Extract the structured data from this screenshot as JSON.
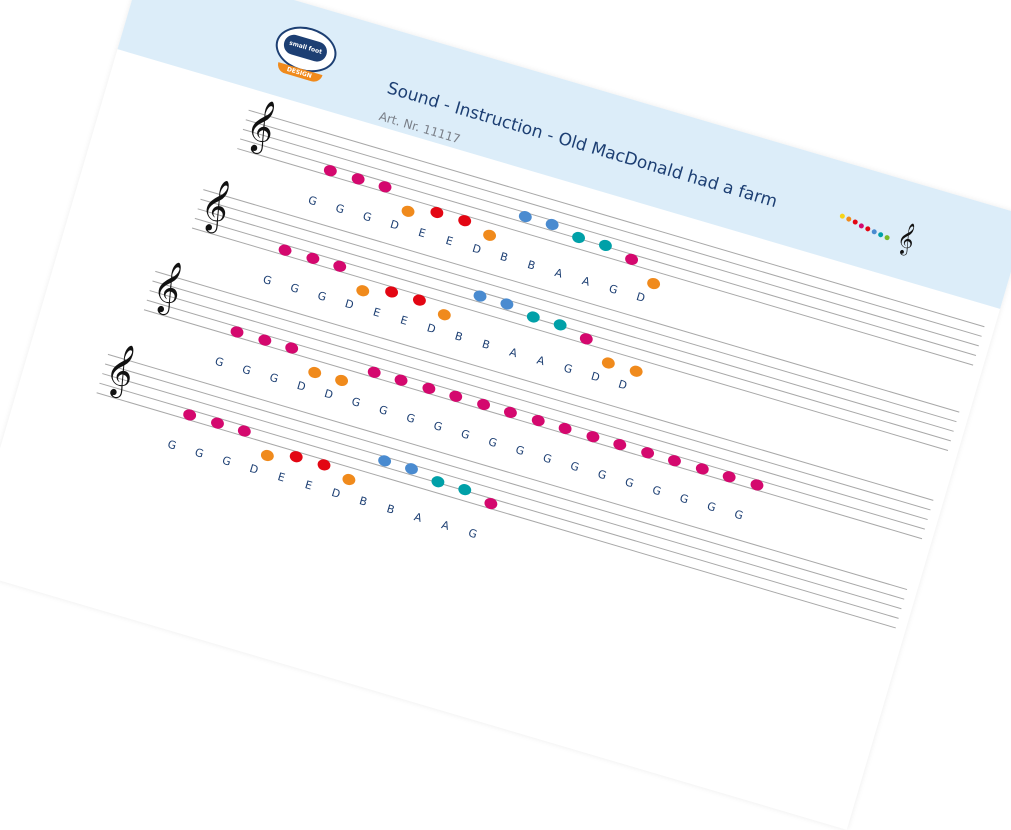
{
  "header": {
    "logo_text": "small foot",
    "logo_subtext": "DESIGN",
    "title": "Sound - Instruction - Old MacDonald had a farm",
    "article_number": "Art. Nr. 11117"
  },
  "note_colors": {
    "G": "#d4086e",
    "A": "#00a0a8",
    "B": "#4a8bd0",
    "D": "#f08a1c",
    "E": "#e30613"
  },
  "mini_icon_colors": [
    "#f7d417",
    "#f08a1c",
    "#e30613",
    "#d4086e",
    "#e30613",
    "#4a8bd0",
    "#00a0a8",
    "#7ab929"
  ],
  "staves": [
    {
      "notes": [
        "G",
        "G",
        "G",
        "D",
        "E",
        "E",
        "D",
        "B",
        "B",
        "A",
        "A",
        "G",
        "D"
      ]
    },
    {
      "notes": [
        "G",
        "G",
        "G",
        "D",
        "E",
        "E",
        "D",
        "B",
        "B",
        "A",
        "A",
        "G",
        "D",
        "D"
      ]
    },
    {
      "notes": [
        "G",
        "G",
        "G",
        "D",
        "D",
        "G",
        "G",
        "G",
        "G",
        "G",
        "G",
        "G",
        "G",
        "G",
        "G",
        "G",
        "G",
        "G",
        "G",
        "G"
      ]
    },
    {
      "notes": [
        "G",
        "G",
        "G",
        "D",
        "E",
        "E",
        "D",
        "B",
        "B",
        "A",
        "A",
        "G"
      ]
    }
  ]
}
